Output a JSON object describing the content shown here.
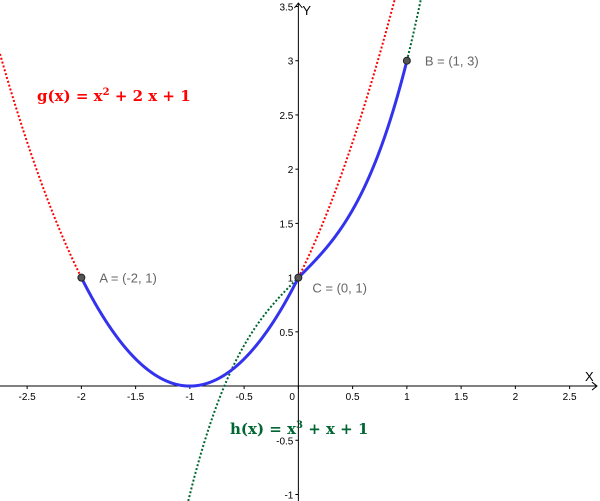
{
  "chart_data": {
    "type": "line",
    "xlabel": "X",
    "ylabel": "Y",
    "xlim": [
      -2.75,
      2.78
    ],
    "ylim": [
      -1.06,
      3.56
    ],
    "grid": false,
    "x_ticks": [
      "-2.5",
      "-2",
      "-1.5",
      "-1",
      "-0.5",
      "0",
      "0.5",
      "1",
      "1.5",
      "2",
      "2.5"
    ],
    "x_tick_values": [
      -2.5,
      -2,
      -1.5,
      -1,
      -0.5,
      0,
      0.5,
      1,
      1.5,
      2,
      2.5
    ],
    "y_ticks": [
      "-1",
      "-0.5",
      "0.5",
      "1",
      "1.5",
      "2",
      "2.5",
      "3",
      "3.5"
    ],
    "y_tick_values": [
      -1,
      -0.5,
      0.5,
      1,
      1.5,
      2,
      2.5,
      3,
      3.5
    ],
    "functions": [
      {
        "name": "g",
        "label_lhs": "g(x)",
        "label_rhs": "= x",
        "label_exp": "2",
        "label_tail": "+ 2 x + 1",
        "coeffs": [
          1,
          2,
          1
        ],
        "color": "#ff0000",
        "style": "dotted"
      },
      {
        "name": "h",
        "label_lhs": "h(x)",
        "label_rhs": "= x",
        "label_exp": "3",
        "label_tail": "+ x + 1",
        "coeffs": [
          1,
          0,
          1,
          1
        ],
        "color": "#006633",
        "style": "dotted"
      }
    ],
    "piecewise": {
      "color": "#3333ee",
      "pieces": [
        {
          "function": "g",
          "domain": [
            -2,
            0
          ]
        },
        {
          "function": "h",
          "domain": [
            0,
            1
          ]
        }
      ]
    },
    "points": [
      {
        "label": "A = (-2, 1)",
        "x": -2,
        "y": 1
      },
      {
        "label": "B = (1, 3)",
        "x": 1,
        "y": 3
      },
      {
        "label": "C = (0, 1)",
        "x": 0,
        "y": 1
      }
    ]
  }
}
